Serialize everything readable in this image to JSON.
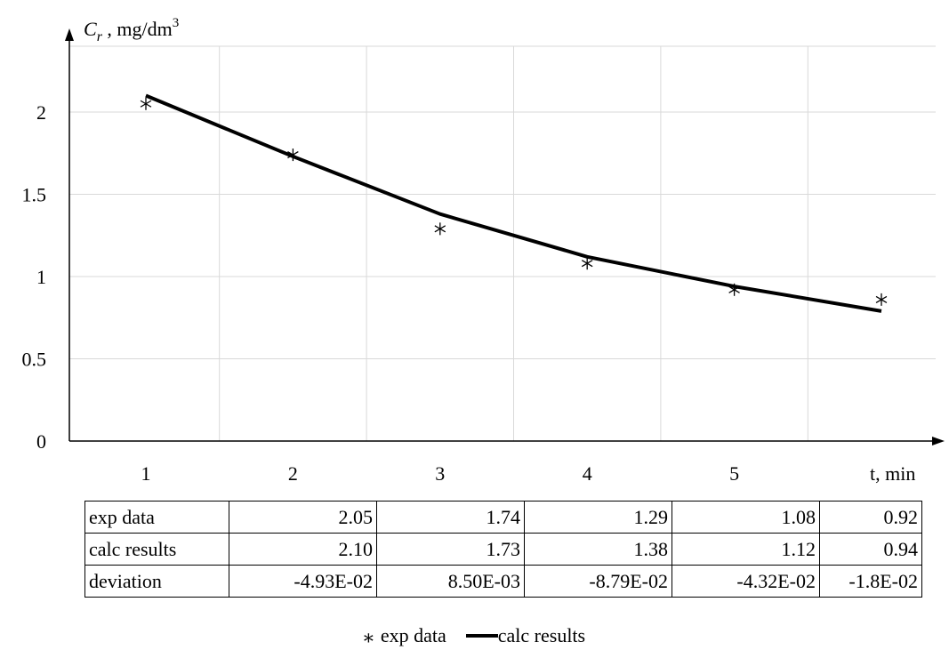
{
  "chart_data": {
    "type": "line",
    "ylabel_main": "C",
    "ylabel_sub": "r",
    "ylabel_unit": " , mg/dm",
    "ylabel_sup": "3",
    "xlabel": "t, min",
    "x_tick_labels": [
      "1",
      "2",
      "3",
      "4",
      "5"
    ],
    "y_tick_labels": [
      "0",
      "0.5",
      "1",
      "1.5",
      "2"
    ],
    "y_ticks": [
      0,
      0.5,
      1,
      1.5,
      2
    ],
    "ylim": [
      0,
      2.4
    ],
    "xlim": [
      0.5,
      5.5
    ],
    "grid": true,
    "x": [
      1,
      2,
      3,
      4,
      5,
      6
    ],
    "series": [
      {
        "name": "exp data",
        "marker": "asterisk",
        "values": [
          2.05,
          1.74,
          1.29,
          1.08,
          0.92,
          0.86
        ]
      },
      {
        "name": "calc results",
        "marker": "line",
        "values": [
          2.1,
          1.73,
          1.38,
          1.12,
          0.94,
          0.79
        ]
      }
    ]
  },
  "table": {
    "rows": [
      {
        "label": "exp data",
        "cells": [
          "2.05",
          "1.74",
          "1.29",
          "1.08",
          "0.92"
        ]
      },
      {
        "label": "calc results",
        "cells": [
          "2.10",
          "1.73",
          "1.38",
          "1.12",
          "0.94"
        ]
      },
      {
        "label": "deviation",
        "cells": [
          "-4.93E-02",
          "8.50E-03",
          "-8.79E-02",
          "-4.32E-02",
          "-1.8E-02"
        ]
      }
    ]
  },
  "legend": {
    "exp_symbol": "⁎",
    "exp_label": "exp data",
    "calc_label": "calc results"
  }
}
